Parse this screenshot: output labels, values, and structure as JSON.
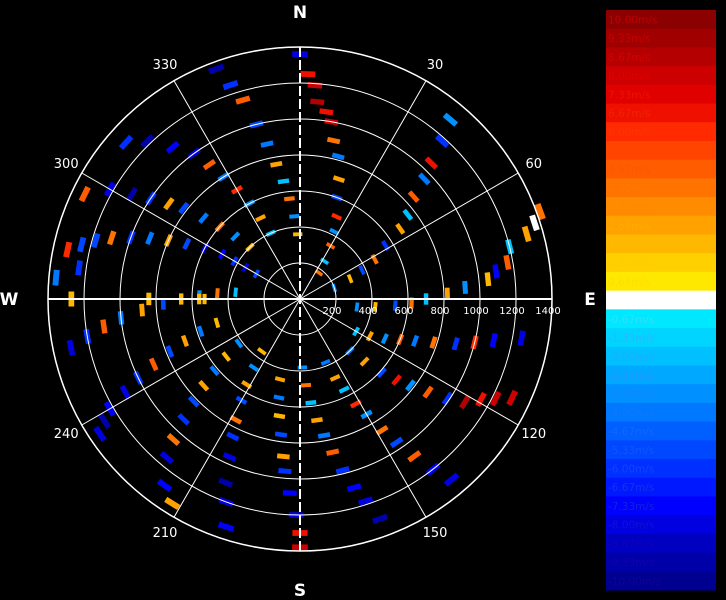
{
  "chart_data": {
    "type": "polar-radial-velocity",
    "compass": {
      "north": "N",
      "east": "E",
      "south": "S",
      "west": "W"
    },
    "angle_labels": [
      {
        "deg": 30,
        "text": "30"
      },
      {
        "deg": 60,
        "text": "60"
      },
      {
        "deg": 120,
        "text": "120"
      },
      {
        "deg": 150,
        "text": "150"
      },
      {
        "deg": 210,
        "text": "210"
      },
      {
        "deg": 240,
        "text": "240"
      },
      {
        "deg": 300,
        "text": "300"
      },
      {
        "deg": 330,
        "text": "330"
      }
    ],
    "range_rings": [
      200,
      400,
      600,
      800,
      1000,
      1200,
      1400
    ],
    "range_labels": [
      "200",
      "400",
      "600",
      "800",
      "1000",
      "1200",
      "1400"
    ],
    "range_max": 1400,
    "colorbar": {
      "labels": [
        "10.00m/s",
        "9.33m/s",
        "8.67m/s",
        "8.00m/s",
        "7.33m/s",
        "6.67m/s",
        "6.00m/s",
        "5.33m/s",
        "4.67m/s",
        "4.00m/s",
        "3.33m/s",
        "2.67m/s",
        "2.00m/s",
        "1.33m/s",
        "0.67m/s",
        "0.00m/s",
        "-0.67m/s",
        "-1.33m/s",
        "-2.00m/s",
        "-2.67m/s",
        "-3.33m/s",
        "-4.00m/s",
        "-4.67m/s",
        "-5.33m/s",
        "-6.00m/s",
        "-6.67m/s",
        "-7.33m/s",
        "-8.00m/s",
        "-8.67m/s",
        "-9.33m/s",
        "-10.00m/s"
      ],
      "colors": [
        "#8b0000",
        "#a00000",
        "#b40000",
        "#cc0000",
        "#e00000",
        "#f01000",
        "#ff2a00",
        "#ff4400",
        "#ff5c00",
        "#ff7400",
        "#ff8c00",
        "#ffa200",
        "#ffb800",
        "#ffd000",
        "#ffe800",
        "#ffffff",
        "#00e8ff",
        "#00d4ff",
        "#00c0ff",
        "#00a8ff",
        "#0090ff",
        "#0078ff",
        "#0060ff",
        "#0048ff",
        "#0030ff",
        "#0018ff",
        "#0000ff",
        "#0000e0",
        "#0000c0",
        "#0000a8",
        "#000090"
      ],
      "label_colors": [
        "#c00000",
        "#c80000",
        "#d40000",
        "#e00000",
        "#ee1100",
        "#f02200",
        "#ff3300",
        "#ff4400",
        "#ff5500",
        "#ff7700",
        "#ff8800",
        "#ffaa00",
        "#ffbb00",
        "#ffcc00",
        "#ffdd00",
        "#ffffff",
        "#33ddff",
        "#22bbff",
        "#22aaff",
        "#2299ff",
        "#1188ff",
        "#1177ff",
        "#1166ff",
        "#1155ff",
        "#1144ff",
        "#1133ee",
        "#1122dd",
        "#1111cc",
        "#1100bb",
        "#1100aa",
        "#110099"
      ]
    },
    "cells": [
      [
        0,
        1360,
        -8
      ],
      [
        2,
        1250,
        7
      ],
      [
        4,
        1190,
        8
      ],
      [
        5,
        1100,
        9
      ],
      [
        8,
        1050,
        7
      ],
      [
        10,
        1000,
        8
      ],
      [
        12,
        900,
        4
      ],
      [
        15,
        820,
        -4
      ],
      [
        18,
        700,
        3
      ],
      [
        20,
        600,
        -5
      ],
      [
        24,
        500,
        6
      ],
      [
        27,
        420,
        -3
      ],
      [
        30,
        340,
        5
      ],
      [
        33,
        250,
        -2
      ],
      [
        36,
        180,
        4
      ],
      [
        40,
        1300,
        -3
      ],
      [
        42,
        1180,
        -6
      ],
      [
        44,
        1050,
        7
      ],
      [
        46,
        960,
        -4
      ],
      [
        48,
        850,
        5
      ],
      [
        52,
        760,
        -2
      ],
      [
        55,
        680,
        3
      ],
      [
        58,
        560,
        -6
      ],
      [
        62,
        470,
        4
      ],
      [
        65,
        380,
        -5
      ],
      [
        68,
        300,
        2
      ],
      [
        72,
        200,
        -3
      ],
      [
        70,
        1420,
        4
      ],
      [
        72,
        1370,
        0
      ],
      [
        74,
        1310,
        3
      ],
      [
        76,
        1200,
        -2
      ],
      [
        80,
        1170,
        5
      ],
      [
        82,
        1100,
        -7
      ],
      [
        84,
        1050,
        2
      ],
      [
        86,
        920,
        -3
      ],
      [
        88,
        820,
        3
      ],
      [
        90,
        700,
        -2
      ],
      [
        92,
        620,
        4
      ],
      [
        94,
        530,
        -5
      ],
      [
        96,
        420,
        2
      ],
      [
        98,
        320,
        -3
      ],
      [
        100,
        1250,
        -8
      ],
      [
        102,
        1100,
        -7
      ],
      [
        104,
        1000,
        6
      ],
      [
        106,
        900,
        -6
      ],
      [
        108,
        780,
        4
      ],
      [
        110,
        680,
        -4
      ],
      [
        112,
        600,
        5
      ],
      [
        115,
        520,
        -3
      ],
      [
        118,
        440,
        3
      ],
      [
        120,
        360,
        -2
      ],
      [
        115,
        1300,
        8
      ],
      [
        117,
        1220,
        8
      ],
      [
        119,
        1150,
        7
      ],
      [
        122,
        1080,
        9
      ],
      [
        124,
        990,
        -6
      ],
      [
        126,
        880,
        5
      ],
      [
        128,
        780,
        -3
      ],
      [
        130,
        700,
        7
      ],
      [
        132,
        610,
        -5
      ],
      [
        134,
        500,
        3
      ],
      [
        136,
        400,
        -4
      ],
      [
        140,
        1310,
        -8
      ],
      [
        142,
        1200,
        -7
      ],
      [
        144,
        1080,
        5
      ],
      [
        146,
        960,
        -5
      ],
      [
        148,
        860,
        4
      ],
      [
        150,
        740,
        -3
      ],
      [
        152,
        660,
        6
      ],
      [
        154,
        560,
        -2
      ],
      [
        156,
        480,
        3
      ],
      [
        158,
        380,
        -4
      ],
      [
        160,
        1300,
        -9
      ],
      [
        162,
        1180,
        -8
      ],
      [
        164,
        1090,
        -7
      ],
      [
        166,
        980,
        -6
      ],
      [
        168,
        870,
        5
      ],
      [
        170,
        770,
        -4
      ],
      [
        172,
        680,
        3
      ],
      [
        174,
        580,
        -2
      ],
      [
        176,
        480,
        4
      ],
      [
        178,
        380,
        -3
      ],
      [
        180,
        1380,
        8
      ],
      [
        180,
        1300,
        7
      ],
      [
        181,
        1200,
        -8
      ],
      [
        183,
        1080,
        -7
      ],
      [
        185,
        960,
        -6
      ],
      [
        186,
        880,
        3
      ],
      [
        188,
        760,
        -5
      ],
      [
        190,
        660,
        2
      ],
      [
        192,
        560,
        -4
      ],
      [
        194,
        460,
        3
      ],
      [
        198,
        1330,
        -7
      ],
      [
        200,
        1200,
        -8
      ],
      [
        202,
        1100,
        -9
      ],
      [
        204,
        960,
        -8
      ],
      [
        206,
        850,
        -6
      ],
      [
        208,
        760,
        4
      ],
      [
        210,
        650,
        -5
      ],
      [
        212,
        560,
        3
      ],
      [
        214,
        460,
        -3
      ],
      [
        216,
        360,
        2
      ],
      [
        212,
        1340,
        3
      ],
      [
        216,
        1280,
        -7
      ],
      [
        220,
        1150,
        -8
      ],
      [
        222,
        1050,
        4
      ],
      [
        224,
        930,
        -6
      ],
      [
        226,
        820,
        -5
      ],
      [
        228,
        720,
        3
      ],
      [
        230,
        620,
        -4
      ],
      [
        232,
        520,
        2
      ],
      [
        234,
        420,
        -3
      ],
      [
        236,
        1340,
        -8
      ],
      [
        238,
        1280,
        -9
      ],
      [
        240,
        1220,
        -7
      ],
      [
        242,
        1100,
        -8
      ],
      [
        244,
        1000,
        -6
      ],
      [
        246,
        890,
        5
      ],
      [
        248,
        780,
        -5
      ],
      [
        250,
        680,
        3
      ],
      [
        252,
        580,
        -4
      ],
      [
        254,
        480,
        2
      ],
      [
        258,
        1300,
        -8
      ],
      [
        260,
        1200,
        -6
      ],
      [
        262,
        1100,
        5
      ],
      [
        264,
        1000,
        -4
      ],
      [
        266,
        880,
        3
      ],
      [
        268,
        760,
        -5
      ],
      [
        270,
        660,
        2
      ],
      [
        272,
        560,
        -3
      ],
      [
        274,
        460,
        4
      ],
      [
        276,
        360,
        -2
      ],
      [
        270,
        1270,
        2
      ],
      [
        270,
        840,
        2
      ],
      [
        270,
        840,
        2
      ],
      [
        270,
        560,
        2
      ],
      [
        270,
        530,
        2
      ],
      [
        275,
        1360,
        -4
      ],
      [
        278,
        1240,
        -6
      ],
      [
        282,
        1320,
        6
      ],
      [
        284,
        1250,
        -5
      ],
      [
        286,
        1180,
        -5
      ],
      [
        288,
        1100,
        4
      ],
      [
        290,
        1000,
        -6
      ],
      [
        292,
        900,
        -4
      ],
      [
        294,
        800,
        3
      ],
      [
        296,
        700,
        -5
      ],
      [
        298,
        600,
        -8
      ],
      [
        300,
        500,
        -7
      ],
      [
        300,
        420,
        -6
      ],
      [
        300,
        350,
        -8
      ],
      [
        300,
        280,
        -5
      ],
      [
        296,
        1330,
        5
      ],
      [
        300,
        1220,
        -8
      ],
      [
        302,
        1100,
        -9
      ],
      [
        304,
        1000,
        -6
      ],
      [
        306,
        900,
        3
      ],
      [
        308,
        820,
        -5
      ],
      [
        310,
        700,
        -4
      ],
      [
        312,
        600,
        4
      ],
      [
        314,
        500,
        -3
      ],
      [
        316,
        400,
        2
      ],
      [
        312,
        1300,
        -6
      ],
      [
        316,
        1220,
        -9
      ],
      [
        320,
        1100,
        -7
      ],
      [
        324,
        1000,
        -8
      ],
      [
        326,
        900,
        5
      ],
      [
        328,
        800,
        -4
      ],
      [
        330,
        700,
        6
      ],
      [
        332,
        600,
        -3
      ],
      [
        334,
        500,
        3
      ],
      [
        336,
        400,
        -2
      ],
      [
        340,
        1360,
        -9
      ],
      [
        342,
        1250,
        -6
      ],
      [
        344,
        1150,
        5
      ],
      [
        346,
        1000,
        -5
      ],
      [
        348,
        880,
        -4
      ],
      [
        350,
        760,
        3
      ],
      [
        352,
        660,
        -2
      ],
      [
        354,
        560,
        4
      ],
      [
        356,
        460,
        -3
      ],
      [
        358,
        360,
        2
      ]
    ]
  }
}
